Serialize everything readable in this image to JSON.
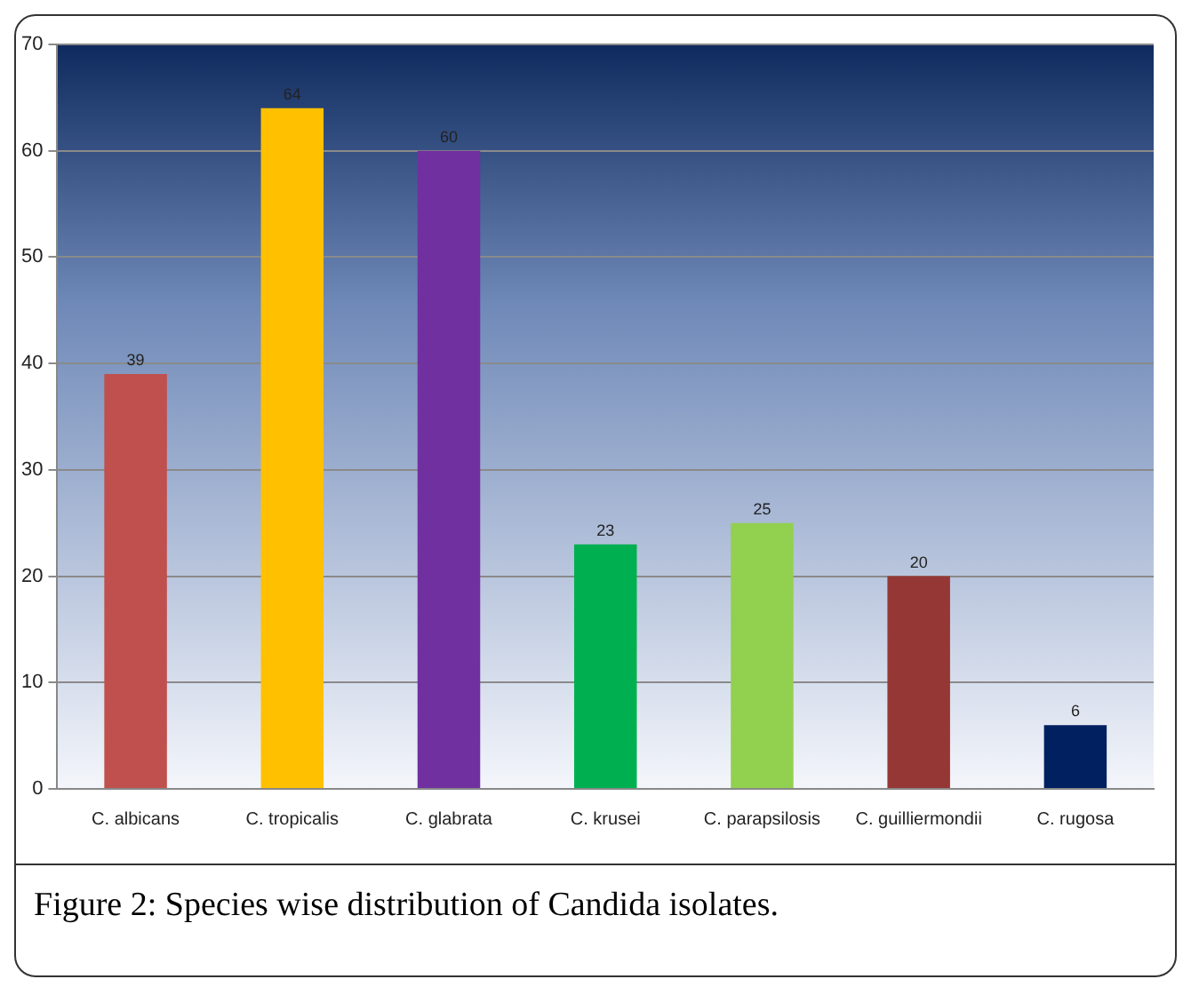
{
  "chart_data": {
    "type": "bar",
    "categories": [
      "C. albicans",
      "C. tropicalis",
      "C. glabrata",
      "C. krusei",
      "C. parapsilosis",
      "C. guilliermondii",
      "C. rugosa"
    ],
    "values": [
      39,
      64,
      60,
      23,
      25,
      20,
      6
    ],
    "colors": [
      "#c0504d",
      "#ffc000",
      "#7030a0",
      "#00b050",
      "#92d050",
      "#953735",
      "#002060"
    ],
    "ylim": [
      0,
      70
    ],
    "yticks": [
      0,
      10,
      20,
      30,
      40,
      50,
      60,
      70
    ],
    "grid": "y",
    "data_labels": true,
    "legend": false,
    "annotations": [
      "Figure 2: Species wise distribution of Candida isolates."
    ]
  }
}
